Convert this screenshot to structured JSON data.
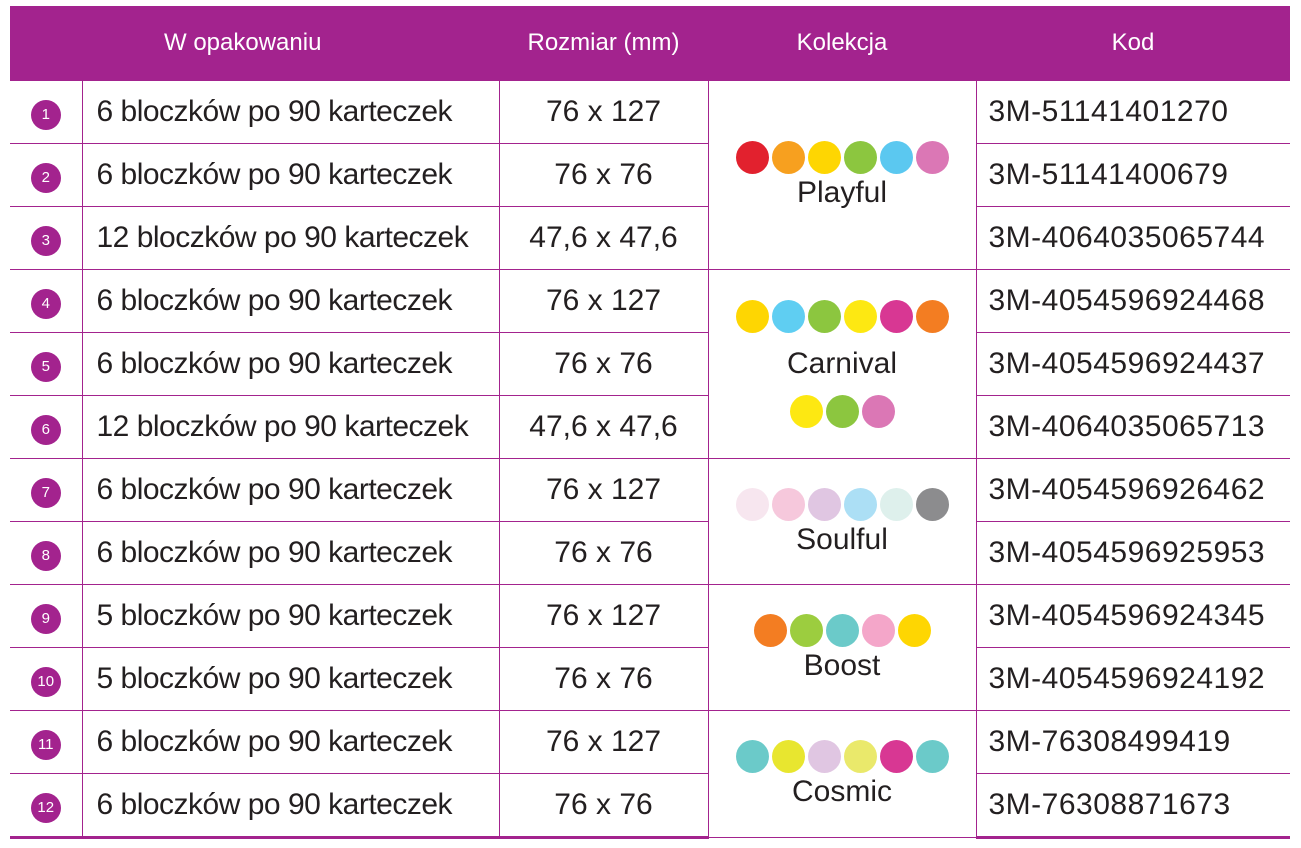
{
  "header": {
    "num": "",
    "package": "W opakowaniu",
    "size": "Rozmiar (mm)",
    "collection": "Kolekcja",
    "code": "Kod"
  },
  "rows": [
    {
      "num": "1",
      "package": "6 bloczków po 90 karteczek",
      "size": "76 x 127",
      "code": "3M-51141401270"
    },
    {
      "num": "2",
      "package": "6 bloczków po 90 karteczek",
      "size": "76 x 76",
      "code": "3M-51141400679"
    },
    {
      "num": "3",
      "package": "12 bloczków po 90 karteczek",
      "size": "47,6 x 47,6",
      "code": "3M-4064035065744"
    },
    {
      "num": "4",
      "package": "6 bloczków po 90 karteczek",
      "size": "76 x 127",
      "code": "3M-4054596924468"
    },
    {
      "num": "5",
      "package": "6 bloczków po 90 karteczek",
      "size": "76 x 76",
      "code": "3M-4054596924437"
    },
    {
      "num": "6",
      "package": "12 bloczków po 90 karteczek",
      "size": "47,6 x 47,6",
      "code": "3M-4064035065713"
    },
    {
      "num": "7",
      "package": "6 bloczków po 90 karteczek",
      "size": "76 x 127",
      "code": "3M-4054596926462"
    },
    {
      "num": "8",
      "package": "6 bloczków po 90 karteczek",
      "size": "76 x 76",
      "code": "3M-4054596925953"
    },
    {
      "num": "9",
      "package": "5 bloczków po 90 karteczek",
      "size": "76 x 127",
      "code": "3M-4054596924345"
    },
    {
      "num": "10",
      "package": "5 bloczków po 90 karteczek",
      "size": "76 x 76",
      "code": "3M-4054596924192"
    },
    {
      "num": "11",
      "package": "6 bloczków po 90 karteczek",
      "size": "76 x 127",
      "code": "3M-76308499419"
    },
    {
      "num": "12",
      "package": "6 bloczków po 90 karteczek",
      "size": "76 x 76",
      "code": "3M-76308871673"
    }
  ],
  "collections": [
    {
      "name": "Playful",
      "colors": [
        "#e2212e",
        "#f7a01f",
        "#fed602",
        "#8cc63f",
        "#5bc8f0",
        "#db77b5"
      ],
      "colors2": []
    },
    {
      "name": "Carnival",
      "colors": [
        "#fed602",
        "#5fcef2",
        "#8cc63f",
        "#fde812",
        "#d83793",
        "#f37d22"
      ],
      "colors2": [
        "#fde812",
        "#8cc63f",
        "#db77b5"
      ]
    },
    {
      "name": "Soulful",
      "colors": [
        "#f7e6ef",
        "#f6c8dc",
        "#e0c6e2",
        "#acdff5",
        "#def0ec",
        "#8c8c8e"
      ],
      "colors2": []
    },
    {
      "name": "Boost",
      "colors": [
        "#f37d22",
        "#9ccd3f",
        "#6bcac9",
        "#f4a6c9",
        "#fed602"
      ],
      "colors2": []
    },
    {
      "name": "Cosmic",
      "colors": [
        "#6bcac9",
        "#e8e62f",
        "#e0c6e2",
        "#eae96b",
        "#d83793",
        "#6bcac9"
      ],
      "colors2": []
    }
  ]
}
